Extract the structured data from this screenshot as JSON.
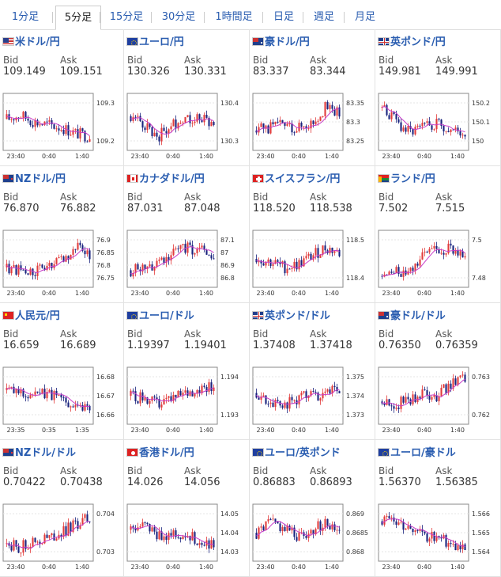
{
  "tabs": [
    "1分足",
    "5分足",
    "15分足",
    "30分足",
    "1時間足",
    "日足",
    "週足",
    "月足"
  ],
  "active_tab": 1,
  "labels": {
    "bid": "Bid",
    "ask": "Ask"
  },
  "colors": {
    "up": "#e23b3b",
    "down": "#1a237e",
    "ma": "#c83cc8",
    "link": "#2a5db0"
  },
  "pairs": [
    {
      "name": "米ドル/円",
      "flag": "us",
      "bid": "109.149",
      "ask": "109.151",
      "ticks": [
        "109.3",
        "109.2"
      ],
      "xticks": [
        "23:40",
        "0:40",
        "1:40"
      ],
      "trend": [
        0.55,
        0.62,
        0.5,
        0.45,
        0.4,
        0.3,
        0.25
      ]
    },
    {
      "name": "ユーロ/円",
      "flag": "eu",
      "bid": "130.326",
      "ask": "130.331",
      "ticks": [
        "130.4",
        "130.3"
      ],
      "xticks": [
        "23:40",
        "0:40",
        "1:40"
      ],
      "trend": [
        0.6,
        0.45,
        0.25,
        0.45,
        0.6,
        0.55,
        0.5
      ]
    },
    {
      "name": "豪ドル/円",
      "flag": "au",
      "bid": "83.337",
      "ask": "83.344",
      "ticks": [
        "83.35",
        "83.3",
        "83.25"
      ],
      "xticks": [
        "23:40",
        "0:40",
        "1:40"
      ],
      "trend": [
        0.35,
        0.4,
        0.45,
        0.4,
        0.5,
        0.75,
        0.65
      ]
    },
    {
      "name": "英ポンド/円",
      "flag": "gb",
      "bid": "149.981",
      "ask": "149.991",
      "ticks": [
        "150.2",
        "150.1",
        "150"
      ],
      "xticks": [
        "23:40",
        "0:40",
        "1:40"
      ],
      "trend": [
        0.75,
        0.5,
        0.3,
        0.4,
        0.5,
        0.35,
        0.3
      ]
    },
    {
      "name": "NZドル/円",
      "flag": "nz",
      "bid": "76.870",
      "ask": "76.882",
      "ticks": [
        "76.9",
        "76.85",
        "76.8",
        "76.75"
      ],
      "xticks": [
        "23:40",
        "0:40",
        "1:40"
      ],
      "trend": [
        0.35,
        0.3,
        0.25,
        0.35,
        0.45,
        0.75,
        0.55
      ]
    },
    {
      "name": "カナダドル/円",
      "flag": "ca",
      "bid": "87.031",
      "ask": "87.048",
      "ticks": [
        "87.1",
        "87",
        "86.9",
        "86.8"
      ],
      "xticks": [
        "23:40",
        "0:40",
        "1:40"
      ],
      "trend": [
        0.3,
        0.35,
        0.45,
        0.6,
        0.7,
        0.65,
        0.55
      ]
    },
    {
      "name": "スイスフラン/円",
      "flag": "ch",
      "bid": "118.520",
      "ask": "118.538",
      "ticks": [
        "118.5",
        "118.4"
      ],
      "xticks": [
        "23:40",
        "0:40",
        "1:40"
      ],
      "trend": [
        0.5,
        0.45,
        0.35,
        0.4,
        0.55,
        0.7,
        0.6
      ]
    },
    {
      "name": "ランド/円",
      "flag": "za",
      "bid": "7.502",
      "ask": "7.515",
      "ticks": [
        "7.5",
        "7.48"
      ],
      "xticks": [
        "23:40",
        "0:40",
        "1:40"
      ],
      "trend": [
        0.2,
        0.25,
        0.35,
        0.55,
        0.7,
        0.65,
        0.6
      ]
    },
    {
      "name": "人民元/円",
      "flag": "cn",
      "bid": "16.659",
      "ask": "16.689",
      "ticks": [
        "16.68",
        "16.67",
        "16.66"
      ],
      "xticks": [
        "23:35",
        "0:35",
        "1:35"
      ],
      "trend": [
        0.6,
        0.55,
        0.5,
        0.55,
        0.45,
        0.35,
        0.3
      ]
    },
    {
      "name": "ユーロ/ドル",
      "flag": "eu",
      "bid": "1.19397",
      "ask": "1.19401",
      "ticks": [
        "1.194",
        "1.193"
      ],
      "xticks": [
        "23:40",
        "0:40",
        "1:40"
      ],
      "trend": [
        0.5,
        0.45,
        0.35,
        0.45,
        0.55,
        0.65,
        0.7
      ]
    },
    {
      "name": "英ポンド/ドル",
      "flag": "gb",
      "bid": "1.37408",
      "ask": "1.37418",
      "ticks": [
        "1.375",
        "1.374",
        "1.373"
      ],
      "xticks": [
        "23:40",
        "0:40",
        "1:40"
      ],
      "trend": [
        0.55,
        0.4,
        0.35,
        0.45,
        0.5,
        0.55,
        0.6
      ]
    },
    {
      "name": "豪ドル/ドル",
      "flag": "au",
      "bid": "0.76350",
      "ask": "0.76359",
      "ticks": [
        "0.763",
        "0.762"
      ],
      "xticks": [
        "23:40",
        "0:40",
        "1:40"
      ],
      "trend": [
        0.4,
        0.35,
        0.45,
        0.55,
        0.5,
        0.7,
        0.8
      ]
    },
    {
      "name": "NZドル/ドル",
      "flag": "nz",
      "bid": "0.70422",
      "ask": "0.70438",
      "ticks": [
        "0.704",
        "0.703"
      ],
      "xticks": [
        "23:40",
        "0:40",
        "1:40"
      ],
      "trend": [
        0.3,
        0.25,
        0.35,
        0.4,
        0.5,
        0.65,
        0.75
      ]
    },
    {
      "name": "香港ドル/円",
      "flag": "hk",
      "bid": "14.026",
      "ask": "14.056",
      "ticks": [
        "14.05",
        "14.04",
        "14.03"
      ],
      "xticks": [
        "23:40",
        "0:40",
        "1:40"
      ],
      "trend": [
        0.55,
        0.6,
        0.45,
        0.5,
        0.45,
        0.35,
        0.3
      ]
    },
    {
      "name": "ユーロ/英ポンド",
      "flag": "eu",
      "bid": "0.86883",
      "ask": "0.86893",
      "ticks": [
        "0.869",
        "0.8685",
        "0.868"
      ],
      "xticks": [
        "23:40",
        "0:40",
        "1:40"
      ],
      "trend": [
        0.5,
        0.7,
        0.6,
        0.45,
        0.55,
        0.65,
        0.6
      ]
    },
    {
      "name": "ユーロ/豪ドル",
      "flag": "eu",
      "bid": "1.56370",
      "ask": "1.56385",
      "ticks": [
        "1.566",
        "1.565",
        "1.564"
      ],
      "xticks": [
        "23:40",
        "0:40",
        "1:40"
      ],
      "trend": [
        0.7,
        0.65,
        0.55,
        0.45,
        0.4,
        0.3,
        0.25
      ]
    }
  ]
}
